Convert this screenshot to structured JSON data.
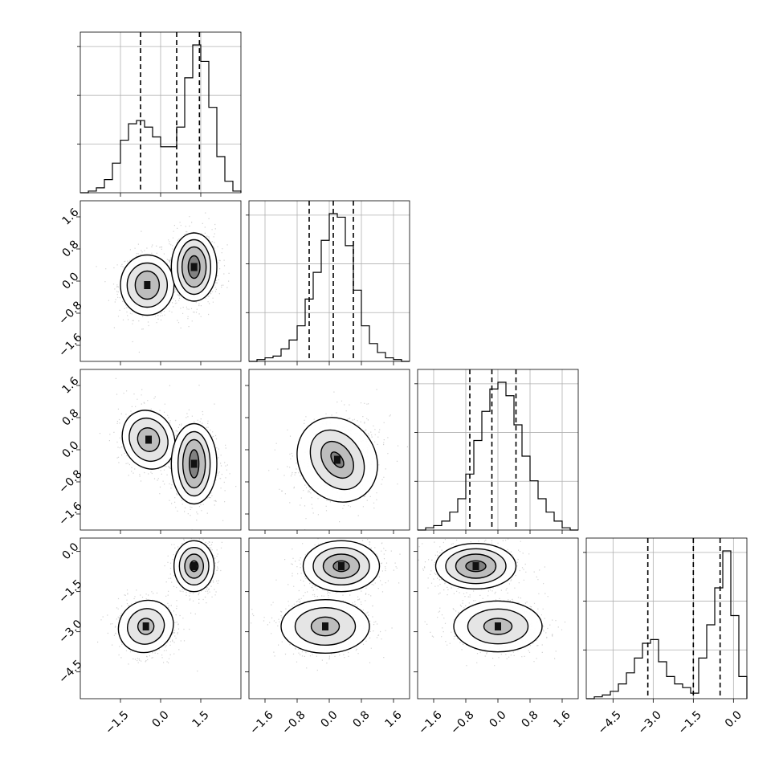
{
  "chart_data": {
    "type": "corner",
    "title": "",
    "parameters": [
      {
        "index": 0,
        "range": [
          -3.0,
          3.0
        ],
        "ticks": [
          -1.5,
          0.0,
          1.5
        ],
        "tick_labels": [
          "−1.5",
          "0.0",
          "1.5"
        ],
        "quantiles": [
          -0.75,
          0.6,
          1.45
        ],
        "histogram": {
          "x0": -3.0,
          "bin_width": 0.3,
          "counts": [
            0,
            1,
            3,
            8,
            18,
            32,
            42,
            44,
            40,
            34,
            28,
            28,
            40,
            70,
            90,
            80,
            52,
            22,
            7,
            1
          ]
        }
      },
      {
        "index": 1,
        "range": [
          -2.0,
          2.0
        ],
        "ticks": [
          -1.6,
          -0.8,
          0.0,
          0.8,
          1.6
        ],
        "tick_labels": [
          "−1.6",
          "−0.8",
          "0.0",
          "0.8",
          "1.6"
        ],
        "quantiles": [
          -0.5,
          0.1,
          0.6
        ],
        "histogram": {
          "x0": -2.0,
          "bin_width": 0.2,
          "counts": [
            0,
            1,
            2,
            3,
            7,
            12,
            20,
            35,
            50,
            68,
            83,
            81,
            65,
            40,
            20,
            10,
            5,
            2,
            1,
            0
          ]
        }
      },
      {
        "index": 2,
        "range": [
          -2.0,
          2.0
        ],
        "ticks": [
          -1.6,
          -0.8,
          0.0,
          0.8,
          1.6
        ],
        "tick_labels": [
          "−1.6",
          "−0.8",
          "0.0",
          "0.8",
          "1.6"
        ],
        "quantiles": [
          -0.7,
          -0.15,
          0.45
        ],
        "histogram": {
          "x0": -2.0,
          "bin_width": 0.2,
          "counts": [
            0,
            1,
            2,
            4,
            8,
            14,
            25,
            40,
            53,
            63,
            66,
            60,
            47,
            33,
            22,
            14,
            8,
            4,
            1,
            0
          ]
        }
      },
      {
        "index": 3,
        "range": [
          -5.5,
          0.5
        ],
        "ticks": [
          -4.5,
          -3.0,
          -1.5,
          0.0
        ],
        "tick_labels": [
          "−4.5",
          "−3.0",
          "−1.5",
          "0.0"
        ],
        "quantiles": [
          -3.2,
          -1.5,
          -0.5
        ],
        "histogram": {
          "x0": -5.5,
          "bin_width": 0.3,
          "counts": [
            0,
            1,
            2,
            4,
            8,
            14,
            22,
            30,
            32,
            20,
            12,
            8,
            6,
            3,
            22,
            40,
            60,
            80,
            45,
            12
          ]
        }
      }
    ],
    "pairs": [
      {
        "x": 0,
        "y": 1,
        "modes": [
          {
            "cx": -0.5,
            "cy": -0.1,
            "rx": [
              0.45,
              0.75,
              1.0
            ],
            "ry": [
              0.35,
              0.55,
              0.75
            ],
            "rot": 0
          },
          {
            "cx": 1.25,
            "cy": 0.35,
            "rx": [
              0.22,
              0.45,
              0.62,
              0.85
            ],
            "ry": [
              0.28,
              0.5,
              0.68,
              0.85
            ],
            "rot": 0
          }
        ]
      },
      {
        "x": 0,
        "y": 2,
        "modes": [
          {
            "cx": -0.45,
            "cy": 0.25,
            "rx": [
              0.4,
              0.7,
              0.95
            ],
            "ry": [
              0.3,
              0.55,
              0.75
            ],
            "rot": -25
          },
          {
            "cx": 1.25,
            "cy": -0.35,
            "rx": [
              0.18,
              0.42,
              0.6,
              0.85
            ],
            "ry": [
              0.35,
              0.6,
              0.8,
              1.0
            ],
            "rot": 0
          }
        ]
      },
      {
        "x": 1,
        "y": 2,
        "modes": [
          {
            "cx": 0.2,
            "cy": -0.25,
            "rx": [
              0.12,
              0.35,
              0.6,
              0.95
            ],
            "ry": [
              0.22,
              0.5,
              0.8,
              1.1
            ],
            "rot": -35
          }
        ]
      },
      {
        "x": 0,
        "y": 3,
        "modes": [
          {
            "cx": -0.55,
            "cy": -2.8,
            "rx": [
              0.3,
              0.7,
              1.05
            ],
            "ry": [
              0.3,
              0.65,
              0.95
            ],
            "rot": -30
          },
          {
            "cx": 1.25,
            "cy": -0.55,
            "rx": [
              0.15,
              0.35,
              0.55,
              0.75
            ],
            "ry": [
              0.2,
              0.45,
              0.7,
              0.95
            ],
            "rot": 0
          }
        ]
      },
      {
        "x": 1,
        "y": 3,
        "modes": [
          {
            "cx": -0.1,
            "cy": -2.8,
            "rx": [
              0.35,
              0.75,
              1.1
            ],
            "ry": [
              0.35,
              0.7,
              1.0
            ],
            "rot": 0
          },
          {
            "cx": 0.3,
            "cy": -0.55,
            "rx": [
              0.2,
              0.45,
              0.7,
              0.95
            ],
            "ry": [
              0.2,
              0.45,
              0.7,
              0.95
            ],
            "rot": 0
          }
        ]
      },
      {
        "x": 2,
        "y": 3,
        "modes": [
          {
            "cx": 0.0,
            "cy": -2.8,
            "rx": [
              0.35,
              0.75,
              1.1
            ],
            "ry": [
              0.3,
              0.65,
              0.95
            ],
            "rot": 0
          },
          {
            "cx": -0.55,
            "cy": -0.55,
            "rx": [
              0.25,
              0.5,
              0.75,
              1.0
            ],
            "ry": [
              0.2,
              0.45,
              0.65,
              0.85
            ],
            "rot": 0
          }
        ]
      }
    ],
    "grid": true,
    "colors": {
      "line": "#000000",
      "grid": "#b0b0b0",
      "points": "#9a9a9a"
    }
  }
}
